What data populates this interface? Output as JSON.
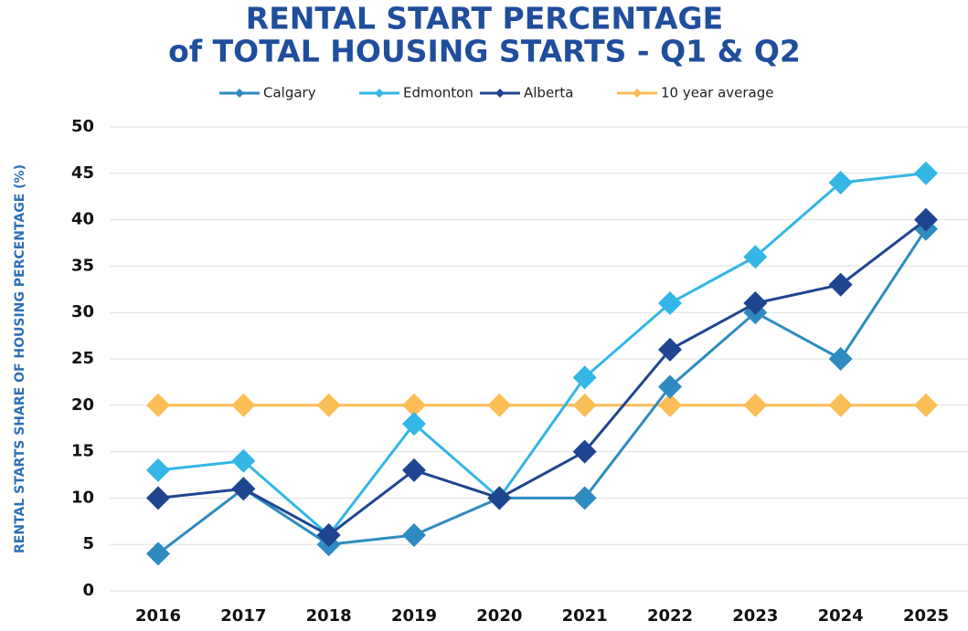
{
  "chart_data": {
    "type": "line",
    "title": [
      "RENTAL START PERCENTAGE",
      "of TOTAL HOUSING STARTS - Q1 & Q2"
    ],
    "y_label": "RENTAL STARTS SHARE OF HOUSING PERCENTAGE (%)",
    "categories": [
      "2016",
      "2017",
      "2018",
      "2019",
      "2020",
      "2021",
      "2022",
      "2023",
      "2024",
      "2025"
    ],
    "series": [
      {
        "name": "Calgary",
        "color": "#2e8bc0",
        "values": [
          4,
          11,
          5,
          6,
          10,
          10,
          22,
          30,
          25,
          39
        ]
      },
      {
        "name": "Edmonton",
        "color": "#33b6e6",
        "values": [
          13,
          14,
          6,
          18,
          10,
          23,
          31,
          36,
          44,
          45
        ]
      },
      {
        "name": "Alberta",
        "color": "#1f4590",
        "values": [
          10,
          11,
          6,
          13,
          10,
          15,
          26,
          31,
          33,
          40
        ]
      },
      {
        "name": "10 year average",
        "color": "#fbbd55",
        "values": [
          20,
          20,
          20,
          20,
          20,
          20,
          20,
          20,
          20,
          20
        ]
      }
    ],
    "ylim": [
      0,
      50
    ],
    "yticks": [
      0,
      5,
      10,
      15,
      20,
      25,
      30,
      35,
      40,
      45,
      50
    ],
    "grid": true,
    "legend": "top"
  }
}
